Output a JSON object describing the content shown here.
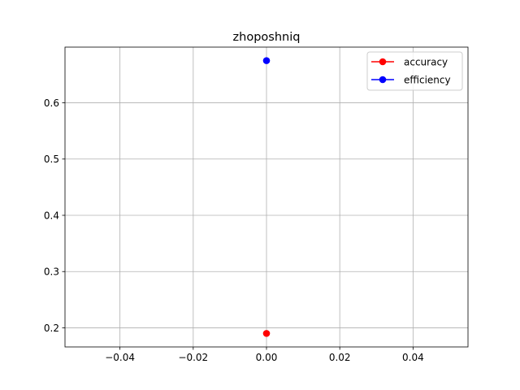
{
  "chart_data": {
    "type": "line",
    "title": "zhoposhniq",
    "xlabel": "",
    "ylabel": "",
    "xlim": [
      -0.055,
      0.055
    ],
    "ylim": [
      0.166,
      0.699
    ],
    "xticks": [
      -0.04,
      -0.02,
      0.0,
      0.02,
      0.04
    ],
    "xtick_labels": [
      "−0.04",
      "−0.02",
      "0.00",
      "0.02",
      "0.04"
    ],
    "yticks": [
      0.2,
      0.3,
      0.4,
      0.5,
      0.6
    ],
    "ytick_labels": [
      "0.2",
      "0.3",
      "0.4",
      "0.5",
      "0.6"
    ],
    "grid": true,
    "legend_position": "top-right",
    "series": [
      {
        "name": "accuracy",
        "color": "#ff0000",
        "marker": "circle",
        "x": [
          0.0
        ],
        "y": [
          0.19
        ]
      },
      {
        "name": "efficiency",
        "color": "#0000ff",
        "marker": "circle",
        "x": [
          0.0
        ],
        "y": [
          0.675
        ]
      }
    ]
  }
}
